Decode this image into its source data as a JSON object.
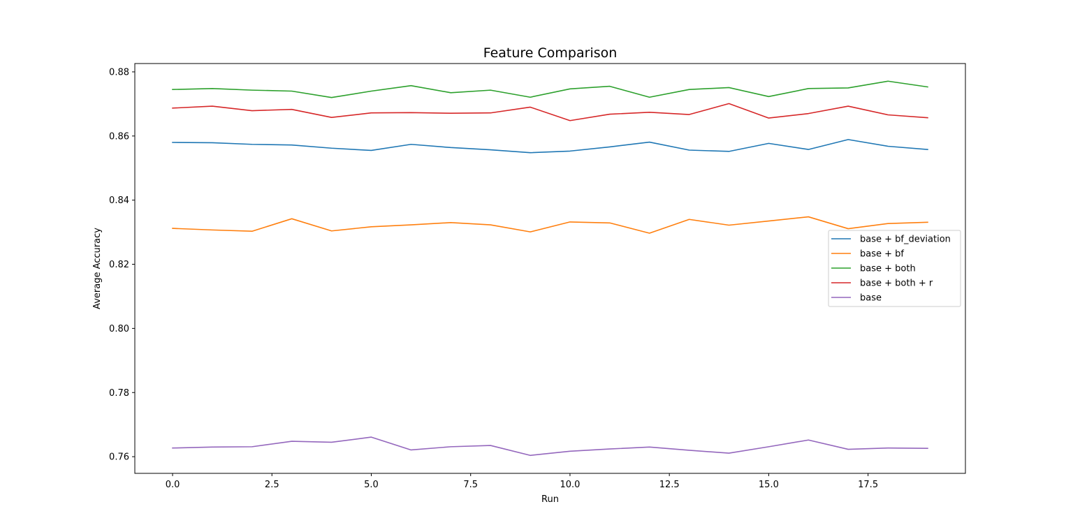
{
  "chart_data": {
    "type": "line",
    "title": "Feature Comparison",
    "xlabel": "Run",
    "ylabel": "Average Accuracy",
    "xlim": [
      -0.95,
      19.95
    ],
    "ylim": [
      0.7548,
      0.8826
    ],
    "x_ticks": [
      0,
      2.5,
      5,
      7.5,
      10,
      12.5,
      15,
      17.5
    ],
    "x_tick_labels": [
      "0.0",
      "2.5",
      "5.0",
      "7.5",
      "10.0",
      "12.5",
      "15.0",
      "17.5"
    ],
    "y_ticks": [
      0.76,
      0.78,
      0.8,
      0.82,
      0.84,
      0.86,
      0.88
    ],
    "y_tick_labels": [
      "0.76",
      "0.78",
      "0.80",
      "0.82",
      "0.84",
      "0.86",
      "0.88"
    ],
    "grid": false,
    "legend_position": "center-right",
    "x": [
      0,
      1,
      2,
      3,
      4,
      5,
      6,
      7,
      8,
      9,
      10,
      11,
      12,
      13,
      14,
      15,
      16,
      17,
      18,
      19
    ],
    "series": [
      {
        "name": "base + bf_deviation",
        "color": "#1f77b4",
        "values": [
          0.858,
          0.8579,
          0.8574,
          0.8572,
          0.8562,
          0.8555,
          0.8574,
          0.8564,
          0.8557,
          0.8548,
          0.8553,
          0.8566,
          0.8581,
          0.8556,
          0.8552,
          0.8577,
          0.8558,
          0.8589,
          0.8568,
          0.8558
        ]
      },
      {
        "name": "base + bf",
        "color": "#ff7f0e",
        "values": [
          0.8312,
          0.8307,
          0.8303,
          0.8342,
          0.8304,
          0.8317,
          0.8323,
          0.833,
          0.8323,
          0.8301,
          0.8332,
          0.8329,
          0.8297,
          0.834,
          0.8322,
          0.8335,
          0.8348,
          0.8311,
          0.8327,
          0.8331
        ]
      },
      {
        "name": "base + both",
        "color": "#2ca02c",
        "values": [
          0.8745,
          0.8748,
          0.8743,
          0.874,
          0.872,
          0.874,
          0.8757,
          0.8735,
          0.8743,
          0.8721,
          0.8747,
          0.8755,
          0.8721,
          0.8745,
          0.8751,
          0.8723,
          0.8748,
          0.875,
          0.8771,
          0.8753
        ]
      },
      {
        "name": "base + both + r",
        "color": "#d62728",
        "values": [
          0.8687,
          0.8693,
          0.8679,
          0.8683,
          0.8658,
          0.8672,
          0.8673,
          0.8671,
          0.8672,
          0.869,
          0.8648,
          0.8668,
          0.8674,
          0.8667,
          0.8701,
          0.8656,
          0.867,
          0.8693,
          0.8666,
          0.8657
        ]
      },
      {
        "name": "base",
        "color": "#9467bd",
        "values": [
          0.7627,
          0.763,
          0.7631,
          0.7648,
          0.7645,
          0.7661,
          0.7621,
          0.7631,
          0.7635,
          0.7604,
          0.7617,
          0.7624,
          0.763,
          0.762,
          0.7611,
          0.7631,
          0.7652,
          0.7623,
          0.7627,
          0.7626
        ]
      }
    ]
  }
}
